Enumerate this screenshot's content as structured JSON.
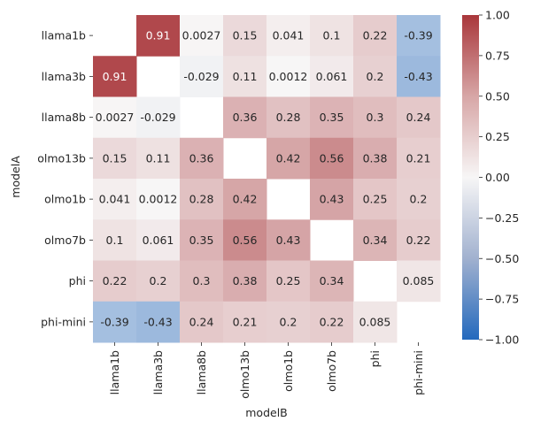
{
  "chart_data": {
    "type": "heatmap",
    "title": "",
    "xlabel": "modelB",
    "ylabel": "modelA",
    "x_categories": [
      "llama1b",
      "llama3b",
      "llama8b",
      "olmo13b",
      "olmo1b",
      "olmo7b",
      "phi",
      "phi-mini"
    ],
    "y_categories": [
      "llama1b",
      "llama3b",
      "llama8b",
      "olmo13b",
      "olmo1b",
      "olmo7b",
      "phi",
      "phi-mini"
    ],
    "values": [
      [
        null,
        0.91,
        0.0027,
        0.15,
        0.041,
        0.1,
        0.22,
        -0.39
      ],
      [
        0.91,
        null,
        -0.029,
        0.11,
        0.0012,
        0.061,
        0.2,
        -0.43
      ],
      [
        0.0027,
        -0.029,
        null,
        0.36,
        0.28,
        0.35,
        0.3,
        0.24
      ],
      [
        0.15,
        0.11,
        0.36,
        null,
        0.42,
        0.56,
        0.38,
        0.21
      ],
      [
        0.041,
        0.0012,
        0.28,
        0.42,
        null,
        0.43,
        0.25,
        0.2
      ],
      [
        0.1,
        0.061,
        0.35,
        0.56,
        0.43,
        null,
        0.34,
        0.22
      ],
      [
        0.22,
        0.2,
        0.3,
        0.38,
        0.25,
        0.34,
        null,
        0.085
      ],
      [
        -0.39,
        -0.43,
        0.24,
        0.21,
        0.2,
        0.22,
        0.085,
        null
      ]
    ],
    "colormap": "vlag",
    "vmin": -1.0,
    "vmax": 1.0,
    "colorbar_ticks": [
      "1.00",
      "0.75",
      "0.50",
      "0.25",
      "0.00",
      "−0.25",
      "−0.50",
      "−0.75",
      "−1.00"
    ],
    "colors": {
      "low": "#2369bd",
      "mid": "#f7f6f6",
      "high": "#a9373b",
      "text_dark": "#262626",
      "text_light": "#ffffff"
    }
  }
}
